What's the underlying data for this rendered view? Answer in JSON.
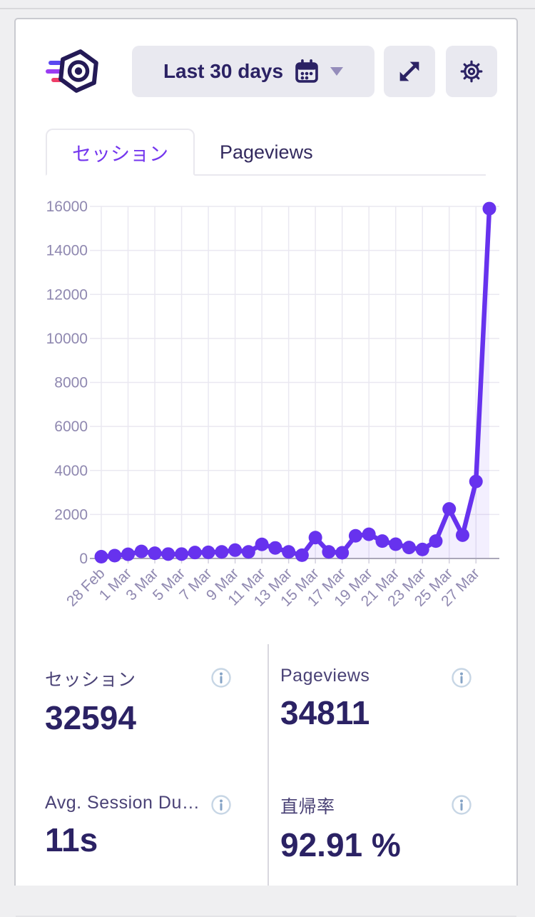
{
  "header": {
    "logo_icon": "burst-statistics-logo",
    "date_range": {
      "label": "Last 30 days",
      "calendar_icon": "calendar",
      "chevron_icon": "chevron-down"
    },
    "expand_icon": "diagonal-expand-arrows",
    "settings_icon": "gear"
  },
  "tabs": {
    "sessions": "セッション",
    "pageviews": "Pageviews"
  },
  "chart_data": {
    "type": "line",
    "title": "",
    "xlabel": "",
    "ylabel": "",
    "series_name": "セッション",
    "x": [
      "28 Feb",
      "29 Feb",
      "1 Mar",
      "2 Mar",
      "3 Mar",
      "4 Mar",
      "5 Mar",
      "6 Mar",
      "7 Mar",
      "8 Mar",
      "9 Mar",
      "10 Mar",
      "11 Mar",
      "12 Mar",
      "13 Mar",
      "14 Mar",
      "15 Mar",
      "16 Mar",
      "17 Mar",
      "18 Mar",
      "19 Mar",
      "20 Mar",
      "21 Mar",
      "22 Mar",
      "23 Mar",
      "24 Mar",
      "25 Mar",
      "26 Mar",
      "27 Mar",
      "28 Mar"
    ],
    "values": [
      80,
      130,
      190,
      320,
      240,
      200,
      200,
      270,
      280,
      300,
      380,
      300,
      640,
      480,
      300,
      150,
      950,
      300,
      260,
      1030,
      1100,
      790,
      650,
      500,
      410,
      790,
      2250,
      1060,
      3500,
      15900
    ],
    "ylim": [
      0,
      16000
    ],
    "ytick_step": 2000,
    "tick_every": 2,
    "grid": true,
    "legend": "none",
    "x_label_rotation": -45,
    "colors": {
      "line": "#6732ee",
      "fill": "rgba(103,50,238,0.08)",
      "grid": "#eae8f1",
      "axis": "#aaa7b9",
      "tick_text": "#8f88b0",
      "tick_mark": "#d3d0de"
    }
  },
  "stats": {
    "sessions": {
      "label": "セッション",
      "value": "32594"
    },
    "pageviews": {
      "label": "Pageviews",
      "value": "34811"
    },
    "avg_session_duration": {
      "label": "Avg. Session Du…",
      "value": "11s"
    },
    "bounce_rate": {
      "label": "直帰率",
      "value": "92.91 %"
    }
  },
  "colors": {
    "accent": "#6732ee",
    "navy": "#2b2264",
    "button_bg": "#e9e9f0"
  }
}
